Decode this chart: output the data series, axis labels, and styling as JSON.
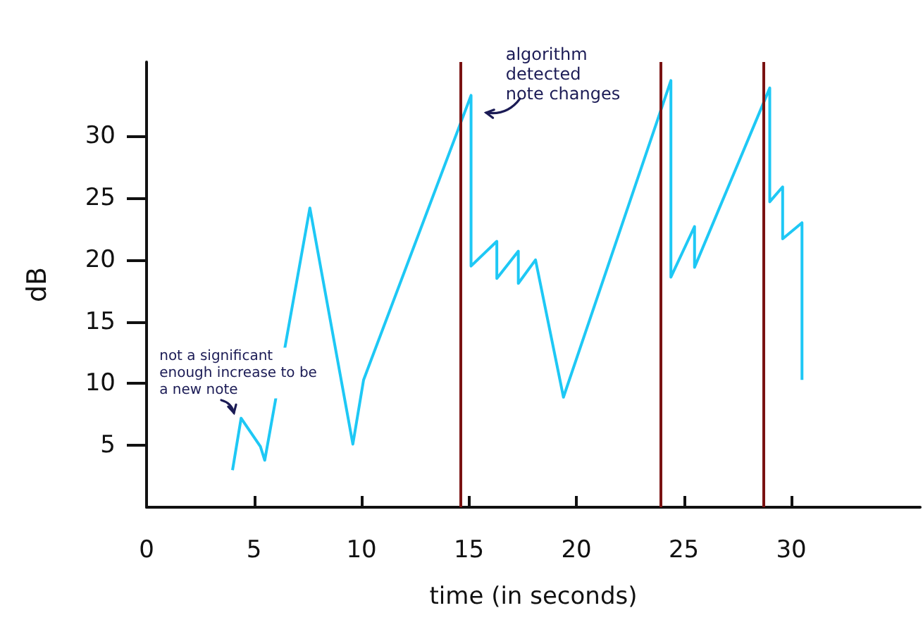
{
  "chart_data": {
    "type": "line",
    "xlabel": "time (in seconds)",
    "ylabel": "dB",
    "x": [
      4.0,
      4.4,
      5.3,
      5.5,
      7.6,
      9.6,
      10.1,
      15.1,
      15.1,
      16.3,
      16.3,
      17.3,
      17.3,
      18.1,
      19.4,
      24.4,
      24.4,
      25.5,
      25.5,
      29.0,
      29.0,
      29.6,
      29.6,
      30.5,
      30.5
    ],
    "series": [
      {
        "color": "#1ec8f5",
        "values": [
          3,
          7.2,
          4.9,
          3.8,
          24.2,
          5.1,
          10.3,
          33.3,
          19.5,
          21.5,
          18.5,
          20.7,
          18.1,
          20,
          8.9,
          34.5,
          18.6,
          22.7,
          19.4,
          33.9,
          24.7,
          25.9,
          21.7,
          23,
          10.3
        ]
      }
    ],
    "xlim": [
      0,
      36
    ],
    "xticks": [
      0,
      5,
      10,
      15,
      20,
      25,
      30
    ],
    "ylim": [
      0,
      36
    ],
    "yticks": [
      5,
      10,
      15,
      20,
      25,
      30
    ],
    "grid": false,
    "ref_lines": [
      {
        "axis": "x",
        "value": 14.6,
        "color": "#7a1212"
      },
      {
        "axis": "x",
        "value": 23.9,
        "color": "#7a1212"
      },
      {
        "axis": "x",
        "value": 28.7,
        "color": "#7a1212"
      }
    ],
    "annotations": [
      {
        "text": "not a significant enough increase to be a new note",
        "x": 4.4,
        "y": 7.2
      },
      {
        "text": "algorithm detected note changes",
        "x": 15.4,
        "y": 31.5
      }
    ]
  }
}
